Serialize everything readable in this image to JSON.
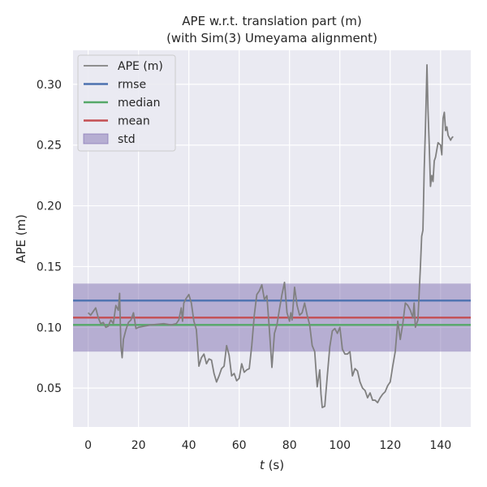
{
  "chart_data": {
    "type": "line",
    "title": "APE w.r.t. translation part (m)",
    "subtitle": "(with Sim(3) Umeyama alignment)",
    "xlabel_var": "t",
    "xlabel_unit": " (s)",
    "ylabel": "APE (m)",
    "xlim": [
      -6,
      152
    ],
    "ylim": [
      0.018,
      0.328
    ],
    "xticks": [
      0,
      20,
      40,
      60,
      80,
      100,
      120,
      140
    ],
    "yticks": [
      0.05,
      0.1,
      0.15,
      0.2,
      0.25,
      0.3
    ],
    "ytick_labels": [
      "0.05",
      "0.10",
      "0.15",
      "0.20",
      "0.25",
      "0.30"
    ],
    "xtick_labels": [
      "0",
      "20",
      "40",
      "60",
      "80",
      "100",
      "120",
      "140"
    ],
    "series": [
      {
        "name": "APE (m)",
        "color": "#808080",
        "points": [
          [
            0,
            0.112
          ],
          [
            1,
            0.11
          ],
          [
            2,
            0.113
          ],
          [
            3,
            0.116
          ],
          [
            4,
            0.108
          ],
          [
            5,
            0.103
          ],
          [
            6,
            0.104
          ],
          [
            7,
            0.1
          ],
          [
            8,
            0.101
          ],
          [
            9,
            0.106
          ],
          [
            10,
            0.103
          ],
          [
            11,
            0.118
          ],
          [
            12,
            0.114
          ],
          [
            12.5,
            0.128
          ],
          [
            13,
            0.085
          ],
          [
            13.5,
            0.075
          ],
          [
            14,
            0.09
          ],
          [
            15,
            0.098
          ],
          [
            16,
            0.104
          ],
          [
            17,
            0.106
          ],
          [
            18,
            0.112
          ],
          [
            19,
            0.099
          ],
          [
            20,
            0.1
          ],
          [
            25,
            0.102
          ],
          [
            30,
            0.103
          ],
          [
            33,
            0.102
          ],
          [
            35,
            0.103
          ],
          [
            36,
            0.106
          ],
          [
            37,
            0.116
          ],
          [
            37.5,
            0.105
          ],
          [
            38,
            0.12
          ],
          [
            39,
            0.124
          ],
          [
            40,
            0.127
          ],
          [
            41,
            0.12
          ],
          [
            42,
            0.105
          ],
          [
            43,
            0.098
          ],
          [
            44,
            0.068
          ],
          [
            45,
            0.075
          ],
          [
            46,
            0.078
          ],
          [
            47,
            0.07
          ],
          [
            48,
            0.074
          ],
          [
            49,
            0.073
          ],
          [
            50,
            0.062
          ],
          [
            51,
            0.055
          ],
          [
            52,
            0.06
          ],
          [
            53,
            0.066
          ],
          [
            54,
            0.068
          ],
          [
            55,
            0.085
          ],
          [
            56,
            0.077
          ],
          [
            57,
            0.06
          ],
          [
            58,
            0.062
          ],
          [
            59,
            0.056
          ],
          [
            60,
            0.058
          ],
          [
            61,
            0.07
          ],
          [
            62,
            0.063
          ],
          [
            63,
            0.065
          ],
          [
            64,
            0.066
          ],
          [
            65,
            0.085
          ],
          [
            66,
            0.11
          ],
          [
            67,
            0.127
          ],
          [
            68,
            0.13
          ],
          [
            69,
            0.135
          ],
          [
            70,
            0.123
          ],
          [
            71,
            0.126
          ],
          [
            72,
            0.098
          ],
          [
            73,
            0.067
          ],
          [
            74,
            0.095
          ],
          [
            75,
            0.102
          ],
          [
            76,
            0.115
          ],
          [
            77,
            0.127
          ],
          [
            78,
            0.137
          ],
          [
            79,
            0.112
          ],
          [
            80,
            0.105
          ],
          [
            80.5,
            0.112
          ],
          [
            81,
            0.106
          ],
          [
            82,
            0.133
          ],
          [
            83,
            0.118
          ],
          [
            84,
            0.11
          ],
          [
            85,
            0.112
          ],
          [
            86,
            0.12
          ],
          [
            87,
            0.11
          ],
          [
            88,
            0.102
          ],
          [
            89,
            0.085
          ],
          [
            90,
            0.08
          ],
          [
            91,
            0.051
          ],
          [
            92,
            0.065
          ],
          [
            92.5,
            0.045
          ],
          [
            93,
            0.034
          ],
          [
            94,
            0.035
          ],
          [
            95,
            0.06
          ],
          [
            96,
            0.084
          ],
          [
            97,
            0.097
          ],
          [
            98,
            0.099
          ],
          [
            99,
            0.095
          ],
          [
            100,
            0.1
          ],
          [
            101,
            0.082
          ],
          [
            102,
            0.078
          ],
          [
            103,
            0.078
          ],
          [
            104,
            0.08
          ],
          [
            105,
            0.06
          ],
          [
            106,
            0.066
          ],
          [
            107,
            0.064
          ],
          [
            108,
            0.055
          ],
          [
            109,
            0.05
          ],
          [
            110,
            0.048
          ],
          [
            111,
            0.042
          ],
          [
            112,
            0.046
          ],
          [
            113,
            0.04
          ],
          [
            114,
            0.04
          ],
          [
            115,
            0.038
          ],
          [
            116,
            0.042
          ],
          [
            117,
            0.045
          ],
          [
            118,
            0.047
          ],
          [
            119,
            0.052
          ],
          [
            120,
            0.055
          ],
          [
            121,
            0.068
          ],
          [
            122,
            0.08
          ],
          [
            123,
            0.105
          ],
          [
            124,
            0.09
          ],
          [
            125,
            0.103
          ],
          [
            126,
            0.12
          ],
          [
            127,
            0.118
          ],
          [
            128,
            0.114
          ],
          [
            129,
            0.108
          ],
          [
            129.5,
            0.12
          ],
          [
            130,
            0.1
          ],
          [
            131,
            0.106
          ],
          [
            131.5,
            0.128
          ],
          [
            132,
            0.15
          ],
          [
            132.5,
            0.175
          ],
          [
            133,
            0.18
          ],
          [
            133.5,
            0.23
          ],
          [
            134,
            0.265
          ],
          [
            134.3,
            0.29
          ],
          [
            134.6,
            0.316
          ],
          [
            135,
            0.28
          ],
          [
            135.5,
            0.25
          ],
          [
            136,
            0.216
          ],
          [
            136.5,
            0.225
          ],
          [
            137,
            0.22
          ],
          [
            137.5,
            0.237
          ],
          [
            138,
            0.24
          ],
          [
            139,
            0.252
          ],
          [
            140,
            0.25
          ],
          [
            140.5,
            0.242
          ],
          [
            141,
            0.272
          ],
          [
            141.5,
            0.277
          ],
          [
            142,
            0.262
          ],
          [
            142.5,
            0.265
          ],
          [
            143,
            0.258
          ],
          [
            144,
            0.254
          ],
          [
            144.5,
            0.256
          ],
          [
            145,
            0.257
          ]
        ]
      }
    ],
    "hlines": [
      {
        "name": "rmse",
        "value": 0.122,
        "color": "#4c72b0"
      },
      {
        "name": "median",
        "value": 0.102,
        "color": "#55a868"
      },
      {
        "name": "mean",
        "value": 0.108,
        "color": "#c44e52"
      }
    ],
    "band": {
      "name": "std",
      "low": 0.08,
      "high": 0.136,
      "color": "#8172b2"
    },
    "legend": [
      {
        "label": "APE (m)",
        "kind": "line",
        "color": "#808080"
      },
      {
        "label": "rmse",
        "kind": "line",
        "color": "#4c72b0"
      },
      {
        "label": "median",
        "kind": "line",
        "color": "#55a868"
      },
      {
        "label": "mean",
        "kind": "line",
        "color": "#c44e52"
      },
      {
        "label": "std",
        "kind": "patch",
        "color": "#8172b2"
      }
    ],
    "legend_position": "top-left",
    "grid": true,
    "plot_background": "#eaeaf2"
  }
}
